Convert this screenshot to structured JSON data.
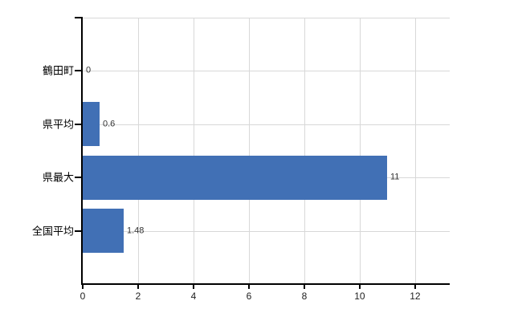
{
  "chart_data": {
    "type": "bar",
    "orientation": "horizontal",
    "title": "",
    "xlabel": "",
    "ylabel": "",
    "categories": [
      "鶴田町",
      "県平均",
      "県最大",
      "全国平均"
    ],
    "values": [
      0,
      0.6,
      11,
      1.48
    ],
    "value_labels": [
      "0",
      "0.6",
      "11",
      "1.48"
    ],
    "x_ticks": [
      0,
      2,
      4,
      6,
      8,
      10,
      12
    ],
    "x_tick_labels": [
      "0",
      "2",
      "4",
      "6",
      "8",
      "10",
      "12"
    ],
    "xlim": [
      0,
      13.25
    ],
    "grid": true,
    "legend": false,
    "bar_color": "#4170b5",
    "grid_color": "#d8d8d8",
    "axis_color": "#000000",
    "background_color": "#ffffff"
  }
}
